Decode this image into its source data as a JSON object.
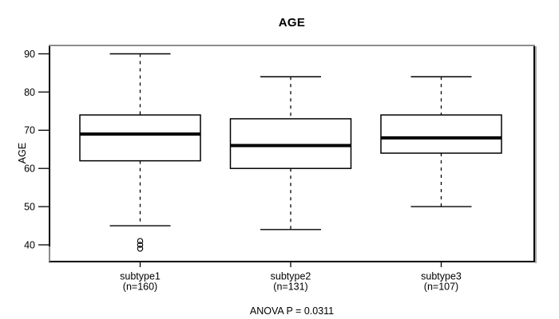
{
  "chart_data": {
    "type": "boxplot",
    "title": "AGE",
    "xlabel": "",
    "ylabel": "AGE",
    "ylim": [
      36,
      92
    ],
    "y_ticks": [
      90,
      80,
      70,
      60,
      50,
      40
    ],
    "grid": false,
    "legend": "none",
    "categories": [
      "subtype1",
      "subtype2",
      "subtype3"
    ],
    "boxes": [
      {
        "label": "subtype1",
        "sublabel": "(n=160)",
        "n": 160,
        "whisker_low": 45,
        "q1": 62,
        "median": 69,
        "q3": 74,
        "whisker_high": 90,
        "outliers": [
          41,
          40,
          39
        ]
      },
      {
        "label": "subtype2",
        "sublabel": "(n=131)",
        "n": 131,
        "whisker_low": 44,
        "q1": 60,
        "median": 66,
        "q3": 73,
        "whisker_high": 84,
        "outliers": []
      },
      {
        "label": "subtype3",
        "sublabel": "(n=107)",
        "n": 107,
        "whisker_low": 50,
        "q1": 64,
        "median": 68,
        "q3": 74,
        "whisker_high": 84,
        "outliers": []
      }
    ],
    "annotation": "ANOVA P = 0.0311"
  },
  "colors": {
    "line": "#000000",
    "frame_shadow": "#8c8c8c",
    "box_fill": "#ffffff",
    "background": "#ffffff",
    "text": "#000000"
  }
}
